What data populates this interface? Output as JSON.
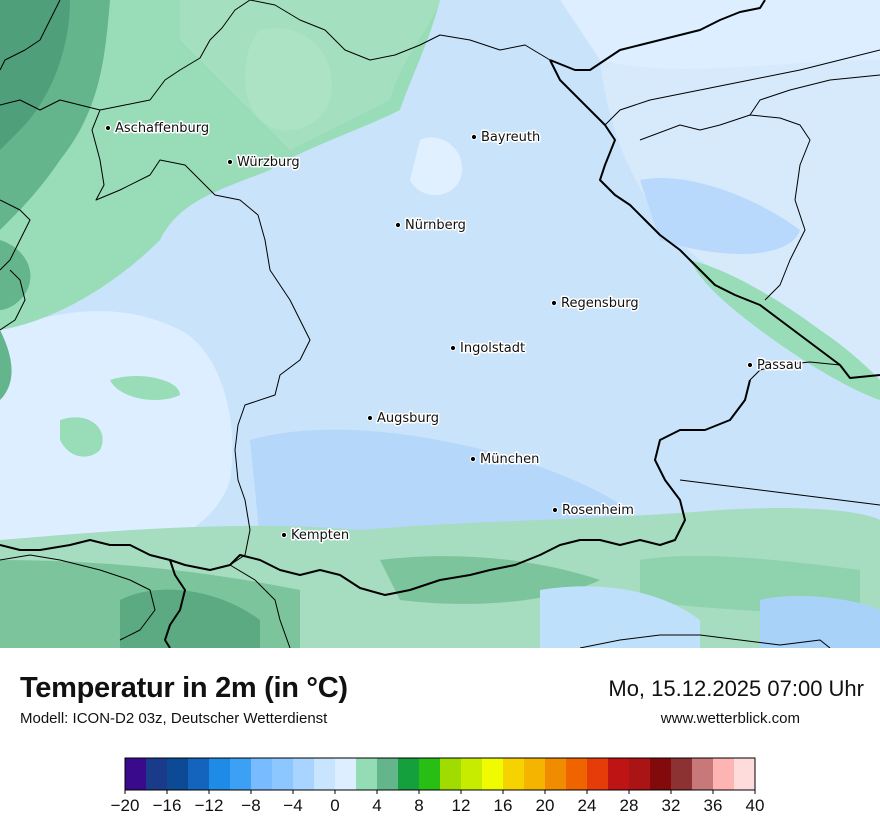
{
  "map": {
    "region": "Bayern",
    "cities": [
      {
        "name": "Aschaffenburg"
      },
      {
        "name": "Würzburg"
      },
      {
        "name": "Bayreuth"
      },
      {
        "name": "Nürnberg"
      },
      {
        "name": "Regensburg"
      },
      {
        "name": "Ingolstadt"
      },
      {
        "name": "Passau"
      },
      {
        "name": "Augsburg"
      },
      {
        "name": "München"
      },
      {
        "name": "Rosenheim"
      },
      {
        "name": "Kempten"
      }
    ]
  },
  "header": {
    "title": "Temperatur in 2m (in °C)",
    "subtitle": "Modell: ICON-D2 03z, Deutscher Wetterdienst",
    "datetime": "Mo, 15.12.2025 07:00 Uhr",
    "website": "www.wetterblick.com"
  },
  "legend": {
    "colors": [
      "#3a0a8c",
      "#1a3a8a",
      "#0d4a96",
      "#1464be",
      "#1e8ce6",
      "#3ca0f5",
      "#78bcff",
      "#8cc8ff",
      "#a8d4ff",
      "#c8e4ff",
      "#dceeff",
      "#94dcb4",
      "#64b48c",
      "#14a03c",
      "#28be14",
      "#a0dc00",
      "#c8ec00",
      "#f0fa00",
      "#f5d200",
      "#f5b400",
      "#f08c00",
      "#f06400",
      "#e63c0a",
      "#be1414",
      "#aa1414",
      "#820a0a",
      "#8c3232",
      "#c87878",
      "#ffb4b4",
      "#ffdcdc"
    ],
    "tick_labels": [
      "−20",
      "−16",
      "−12",
      "−8",
      "−4",
      "0",
      "4",
      "8",
      "12",
      "16",
      "20",
      "24",
      "28",
      "32",
      "36",
      "40"
    ]
  }
}
